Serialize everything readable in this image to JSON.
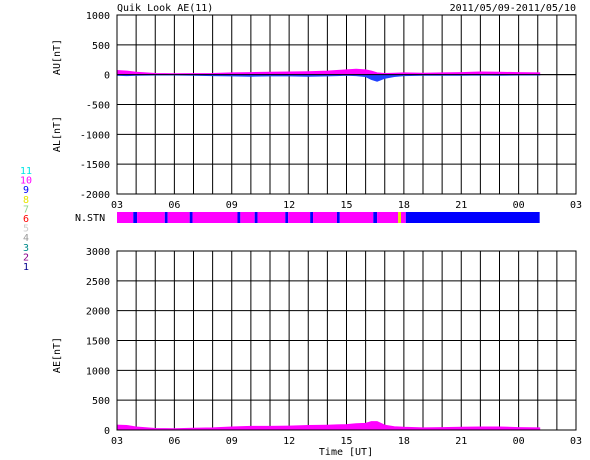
{
  "header": {
    "title": "Quik Look AE(11)",
    "date_range": "2011/05/09-2011/05/10"
  },
  "legend": {
    "entries": [
      {
        "label": "11",
        "color": "#00e5e5"
      },
      {
        "label": "10",
        "color": "#ff00ff"
      },
      {
        "label": "9",
        "color": "#0000ff"
      },
      {
        "label": "8",
        "color": "#e5e500"
      },
      {
        "label": "7",
        "color": "#8fd48f"
      },
      {
        "label": "6",
        "color": "#ff0000"
      },
      {
        "label": "5",
        "color": "#cccccc"
      },
      {
        "label": "4",
        "color": "#999999"
      },
      {
        "label": "3",
        "color": "#008b8b"
      },
      {
        "label": "2",
        "color": "#8b008b"
      },
      {
        "label": "1",
        "color": "#00008b"
      }
    ]
  },
  "colors": {
    "station_10": "#ff00ff",
    "station_9": "#0000ff",
    "station_8": "#e5e500"
  },
  "chart_data": [
    {
      "type": "area",
      "title": "Quik Look AE(11)",
      "ylabel_upper": "AU[nT]",
      "ylabel_lower": "AL[nT]",
      "ylim": [
        -2000,
        1000
      ],
      "yticks": [
        1000,
        500,
        0,
        -500,
        -1000,
        -1500,
        -2000
      ],
      "xlim": [
        3,
        27
      ],
      "xticks": [
        "03",
        "06",
        "09",
        "12",
        "15",
        "18",
        "21",
        "00",
        "03"
      ],
      "grid": true,
      "series": [
        {
          "name": "AU",
          "x": [
            3,
            3.5,
            4,
            5,
            6,
            7,
            8,
            9,
            10,
            11,
            12,
            13,
            14,
            14.5,
            15,
            15.5,
            16,
            16.3,
            16.6,
            17,
            17.5,
            18,
            19,
            20,
            21,
            22,
            23,
            24,
            25.1
          ],
          "values": [
            70,
            60,
            40,
            20,
            15,
            18,
            20,
            30,
            35,
            40,
            45,
            50,
            60,
            70,
            80,
            90,
            80,
            60,
            30,
            20,
            25,
            30,
            25,
            30,
            35,
            45,
            40,
            35,
            30
          ]
        },
        {
          "name": "AL",
          "x": [
            3,
            3.5,
            4,
            5,
            6,
            7,
            8,
            9,
            10,
            11,
            12,
            13,
            14,
            14.5,
            15,
            15.5,
            16,
            16.3,
            16.6,
            17,
            17.5,
            18,
            19,
            20,
            21,
            22,
            23,
            24,
            25.1
          ],
          "values": [
            -10,
            -15,
            -10,
            -5,
            -5,
            -10,
            -15,
            -20,
            -25,
            -20,
            -20,
            -25,
            -20,
            -15,
            -10,
            -15,
            -30,
            -80,
            -110,
            -60,
            -30,
            -15,
            -10,
            -10,
            -10,
            -5,
            -10,
            -5,
            -5
          ]
        }
      ]
    },
    {
      "type": "heatmap",
      "title": "N.STN",
      "xlim": [
        3,
        27
      ],
      "segments": [
        {
          "x0": 3.0,
          "x1": 3.85,
          "station": 10
        },
        {
          "x0": 3.85,
          "x1": 4.05,
          "station": 9
        },
        {
          "x0": 4.05,
          "x1": 5.5,
          "station": 10
        },
        {
          "x0": 5.5,
          "x1": 5.65,
          "station": 9
        },
        {
          "x0": 5.65,
          "x1": 6.8,
          "station": 10
        },
        {
          "x0": 6.8,
          "x1": 6.95,
          "station": 9
        },
        {
          "x0": 6.95,
          "x1": 9.3,
          "station": 10
        },
        {
          "x0": 9.3,
          "x1": 9.45,
          "station": 9
        },
        {
          "x0": 9.45,
          "x1": 10.2,
          "station": 10
        },
        {
          "x0": 10.2,
          "x1": 10.35,
          "station": 9
        },
        {
          "x0": 10.35,
          "x1": 11.8,
          "station": 10
        },
        {
          "x0": 11.8,
          "x1": 11.95,
          "station": 9
        },
        {
          "x0": 11.95,
          "x1": 13.1,
          "station": 10
        },
        {
          "x0": 13.1,
          "x1": 13.25,
          "station": 9
        },
        {
          "x0": 13.25,
          "x1": 14.5,
          "station": 10
        },
        {
          "x0": 14.5,
          "x1": 14.65,
          "station": 9
        },
        {
          "x0": 14.65,
          "x1": 16.4,
          "station": 10
        },
        {
          "x0": 16.4,
          "x1": 16.6,
          "station": 9
        },
        {
          "x0": 16.6,
          "x1": 17.7,
          "station": 10
        },
        {
          "x0": 17.7,
          "x1": 17.85,
          "station": 8
        },
        {
          "x0": 17.85,
          "x1": 18.1,
          "station": 10
        },
        {
          "x0": 18.1,
          "x1": 25.1,
          "station": 9
        }
      ]
    },
    {
      "type": "area",
      "ylabel": "AE[nT]",
      "xlabel": "Time [UT]",
      "ylim": [
        0,
        3000
      ],
      "yticks": [
        3000,
        2500,
        2000,
        1500,
        1000,
        500,
        0
      ],
      "xlim": [
        3,
        27
      ],
      "xticks": [
        "03",
        "06",
        "09",
        "12",
        "15",
        "18",
        "21",
        "00",
        "03"
      ],
      "grid": true,
      "series": [
        {
          "name": "AE",
          "x": [
            3,
            3.5,
            4,
            5,
            6,
            7,
            8,
            9,
            10,
            11,
            12,
            13,
            14,
            14.5,
            15,
            15.5,
            16,
            16.3,
            16.6,
            17,
            17.5,
            18,
            19,
            20,
            21,
            22,
            23,
            24,
            25.1
          ],
          "values": [
            80,
            75,
            50,
            25,
            20,
            28,
            35,
            50,
            60,
            60,
            65,
            75,
            80,
            85,
            90,
            105,
            110,
            140,
            140,
            80,
            55,
            45,
            35,
            40,
            45,
            50,
            50,
            40,
            35
          ]
        }
      ]
    }
  ]
}
